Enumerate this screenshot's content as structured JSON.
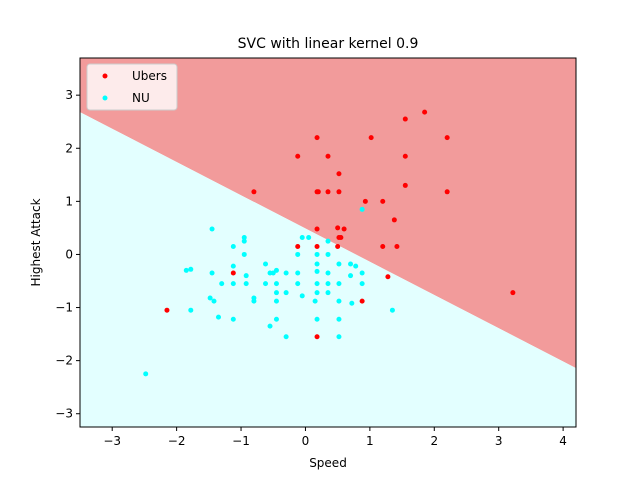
{
  "chart_data": {
    "type": "scatter",
    "title": "SVC with linear kernel 0.9",
    "xlabel": "Speed",
    "ylabel": "Highest Attack",
    "xlim": [
      -3.5,
      4.2
    ],
    "ylim": [
      -3.25,
      3.7
    ],
    "xticks": [
      -3,
      -2,
      -1,
      0,
      1,
      2,
      3,
      4
    ],
    "yticks": [
      -3,
      -2,
      -1,
      0,
      1,
      2,
      3
    ],
    "grid": false,
    "legend_position": "top-left",
    "decision_boundary": {
      "line": [
        [
          -3.5,
          2.68
        ],
        [
          4.2,
          -2.14
        ]
      ],
      "region_above_color": "#f29b9b",
      "region_below_color": "#e3ffff"
    },
    "series": [
      {
        "name": "Ubers",
        "color": "#ff0000",
        "points": [
          [
            1.85,
            2.68
          ],
          [
            1.55,
            2.55
          ],
          [
            0.18,
            2.2
          ],
          [
            1.02,
            2.2
          ],
          [
            2.2,
            2.2
          ],
          [
            -0.12,
            1.85
          ],
          [
            0.35,
            1.85
          ],
          [
            1.55,
            1.85
          ],
          [
            0.52,
            1.52
          ],
          [
            -0.8,
            1.18
          ],
          [
            0.18,
            1.18
          ],
          [
            0.2,
            1.18
          ],
          [
            0.35,
            1.18
          ],
          [
            0.52,
            1.18
          ],
          [
            1.55,
            1.3
          ],
          [
            2.2,
            1.18
          ],
          [
            0.93,
            1.0
          ],
          [
            1.2,
            1.0
          ],
          [
            1.38,
            0.65
          ],
          [
            0.18,
            0.48
          ],
          [
            0.5,
            0.5
          ],
          [
            0.6,
            0.48
          ],
          [
            0.52,
            0.32
          ],
          [
            0.55,
            0.32
          ],
          [
            -0.12,
            0.15
          ],
          [
            0.18,
            0.15
          ],
          [
            0.5,
            0.15
          ],
          [
            1.2,
            0.15
          ],
          [
            1.42,
            0.15
          ],
          [
            -1.12,
            -0.35
          ],
          [
            1.28,
            -0.42
          ],
          [
            0.88,
            -0.88
          ],
          [
            -2.15,
            -1.05
          ],
          [
            3.22,
            -0.72
          ],
          [
            0.18,
            -1.55
          ]
        ]
      },
      {
        "name": "NU",
        "color": "#00ffff",
        "points": [
          [
            0.88,
            0.85
          ],
          [
            -1.45,
            0.48
          ],
          [
            -0.05,
            0.32
          ],
          [
            0.05,
            0.32
          ],
          [
            -0.95,
            0.32
          ],
          [
            -0.95,
            0.25
          ],
          [
            0.35,
            0.25
          ],
          [
            -1.12,
            0.15
          ],
          [
            -0.95,
            0.0
          ],
          [
            0.18,
            0.0
          ],
          [
            -0.12,
            0.0
          ],
          [
            0.35,
            0.0
          ],
          [
            0.7,
            -0.18
          ],
          [
            0.52,
            -0.18
          ],
          [
            0.78,
            -0.22
          ],
          [
            -1.78,
            -0.28
          ],
          [
            -1.85,
            -0.3
          ],
          [
            -1.12,
            -0.22
          ],
          [
            -0.45,
            -0.3
          ],
          [
            -0.5,
            -0.35
          ],
          [
            -0.3,
            -0.35
          ],
          [
            -0.12,
            -0.35
          ],
          [
            0.18,
            -0.32
          ],
          [
            0.35,
            -0.35
          ],
          [
            -1.45,
            -0.35
          ],
          [
            -0.92,
            -0.4
          ],
          [
            -0.55,
            -0.35
          ],
          [
            0.7,
            -0.4
          ],
          [
            -1.3,
            -0.55
          ],
          [
            -1.12,
            -0.55
          ],
          [
            -0.92,
            -0.55
          ],
          [
            -0.62,
            -0.55
          ],
          [
            -0.45,
            -0.55
          ],
          [
            -0.12,
            -0.55
          ],
          [
            0.18,
            -0.55
          ],
          [
            0.35,
            -0.55
          ],
          [
            0.52,
            -0.55
          ],
          [
            0.88,
            -0.55
          ],
          [
            -0.3,
            -0.72
          ],
          [
            -0.05,
            -0.78
          ],
          [
            0.18,
            -0.72
          ],
          [
            0.35,
            -0.72
          ],
          [
            -0.45,
            -0.72
          ],
          [
            -1.48,
            -0.82
          ],
          [
            -1.42,
            -0.88
          ],
          [
            -0.8,
            -0.82
          ],
          [
            -0.8,
            -0.88
          ],
          [
            -0.45,
            -0.88
          ],
          [
            0.15,
            -0.88
          ],
          [
            0.52,
            -0.88
          ],
          [
            0.72,
            -0.92
          ],
          [
            -1.78,
            -1.05
          ],
          [
            1.35,
            -1.05
          ],
          [
            -1.35,
            -1.18
          ],
          [
            -1.12,
            -1.22
          ],
          [
            -0.45,
            -1.22
          ],
          [
            0.18,
            -1.22
          ],
          [
            0.52,
            -1.22
          ],
          [
            -0.55,
            -1.35
          ],
          [
            -0.3,
            -1.55
          ],
          [
            0.52,
            -1.55
          ],
          [
            -2.48,
            -2.25
          ],
          [
            0.88,
            -0.35
          ],
          [
            0.18,
            -0.18
          ],
          [
            -0.62,
            -0.18
          ]
        ]
      }
    ]
  }
}
